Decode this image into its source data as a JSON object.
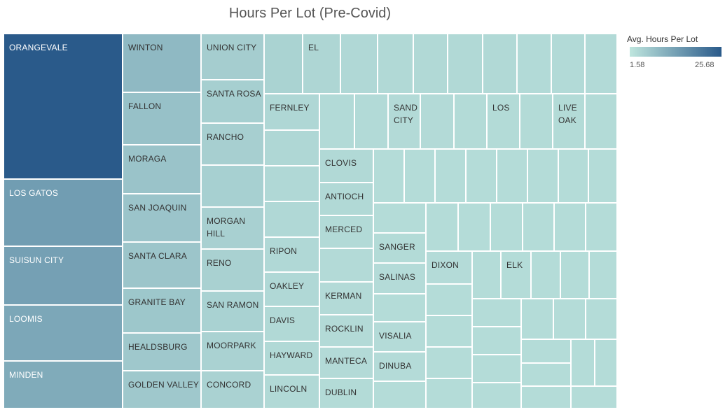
{
  "chart_data": {
    "type": "treemap",
    "title": "Hours Per Lot (Pre-Covid)",
    "legend": {
      "title": "Avg. Hours Per Lot",
      "min_label": "1.58",
      "max_label": "25.68",
      "min": 1.58,
      "max": 25.68,
      "color_low": "#bfe6de",
      "color_high": "#2a5a8a",
      "placement": "top-right"
    },
    "cells": [
      {
        "label": "ORANGEVALE",
        "value": 25.68
      },
      {
        "label": "LOS GATOS",
        "value": 14.2
      },
      {
        "label": "SUISUN CITY",
        "value": 13.6
      },
      {
        "label": "LOOMIS",
        "value": 12.4
      },
      {
        "label": "MINDEN",
        "value": 11.8
      },
      {
        "label": "WINTON",
        "value": 9.4
      },
      {
        "label": "FALLON",
        "value": 8.0
      },
      {
        "label": "MORAGA",
        "value": 7.6
      },
      {
        "label": "SAN JOAQUIN",
        "value": 7.4
      },
      {
        "label": "SANTA CLARA",
        "value": 7.2
      },
      {
        "label": "GRANITE BAY",
        "value": 7.0
      },
      {
        "label": "HEALDSBURG",
        "value": 6.8
      },
      {
        "label": "GOLDEN VALLEY",
        "value": 6.8
      },
      {
        "label": "UNION CITY",
        "value": 5.8
      },
      {
        "label": "SANTA ROSA",
        "value": 5.6
      },
      {
        "label": "RANCHO",
        "value": 5.5
      },
      {
        "label": "",
        "value": 5.4
      },
      {
        "label": "MORGAN\nHILL",
        "value": 5.3
      },
      {
        "label": "RENO",
        "value": 5.2
      },
      {
        "label": "SAN RAMON",
        "value": 5.1
      },
      {
        "label": "MOORPARK",
        "value": 5.0
      },
      {
        "label": "CONCORD",
        "value": 5.0
      },
      {
        "label": "",
        "value": 4.9
      },
      {
        "label": "EL",
        "value": 4.4
      },
      {
        "label": "",
        "value": 4.0
      },
      {
        "label": "",
        "value": 3.9
      },
      {
        "label": "",
        "value": 3.9
      },
      {
        "label": "",
        "value": 3.8
      },
      {
        "label": "",
        "value": 3.8
      },
      {
        "label": "",
        "value": 3.7
      },
      {
        "label": "",
        "value": 3.7
      },
      {
        "label": "",
        "value": 3.7
      },
      {
        "label": "FERNLEY",
        "value": 4.2
      },
      {
        "label": "",
        "value": 4.1
      },
      {
        "label": "",
        "value": 4.0
      },
      {
        "label": "",
        "value": 4.0
      },
      {
        "label": "RIPON",
        "value": 4.0
      },
      {
        "label": "OAKLEY",
        "value": 4.0
      },
      {
        "label": "DAVIS",
        "value": 3.9
      },
      {
        "label": "HAYWARD",
        "value": 3.9
      },
      {
        "label": "LINCOLN",
        "value": 3.9
      },
      {
        "label": "",
        "value": 3.7
      },
      {
        "label": "",
        "value": 3.7
      },
      {
        "label": "SAND\nCITY",
        "value": 3.6
      },
      {
        "label": "",
        "value": 3.6
      },
      {
        "label": "",
        "value": 3.5
      },
      {
        "label": "LOS",
        "value": 3.5
      },
      {
        "label": "",
        "value": 3.5
      },
      {
        "label": "LIVE\nOAK",
        "value": 3.5
      },
      {
        "label": "",
        "value": 3.5
      },
      {
        "label": "CLOVIS",
        "value": 3.8
      },
      {
        "label": "ANTIOCH",
        "value": 3.8
      },
      {
        "label": "MERCED",
        "value": 3.7
      },
      {
        "label": "",
        "value": 3.6
      },
      {
        "label": "KERMAN",
        "value": 3.6
      },
      {
        "label": "ROCKLIN",
        "value": 3.6
      },
      {
        "label": "MANTECA",
        "value": 3.6
      },
      {
        "label": "DUBLIN",
        "value": 3.5
      },
      {
        "label": "SANGER",
        "value": 3.5
      },
      {
        "label": "SALINAS",
        "value": 3.4
      },
      {
        "label": "VISALIA",
        "value": 3.4
      },
      {
        "label": "DINUBA",
        "value": 3.4
      },
      {
        "label": "DIXON",
        "value": 3.4
      },
      {
        "label": "ELK",
        "value": 3.3
      }
    ]
  }
}
